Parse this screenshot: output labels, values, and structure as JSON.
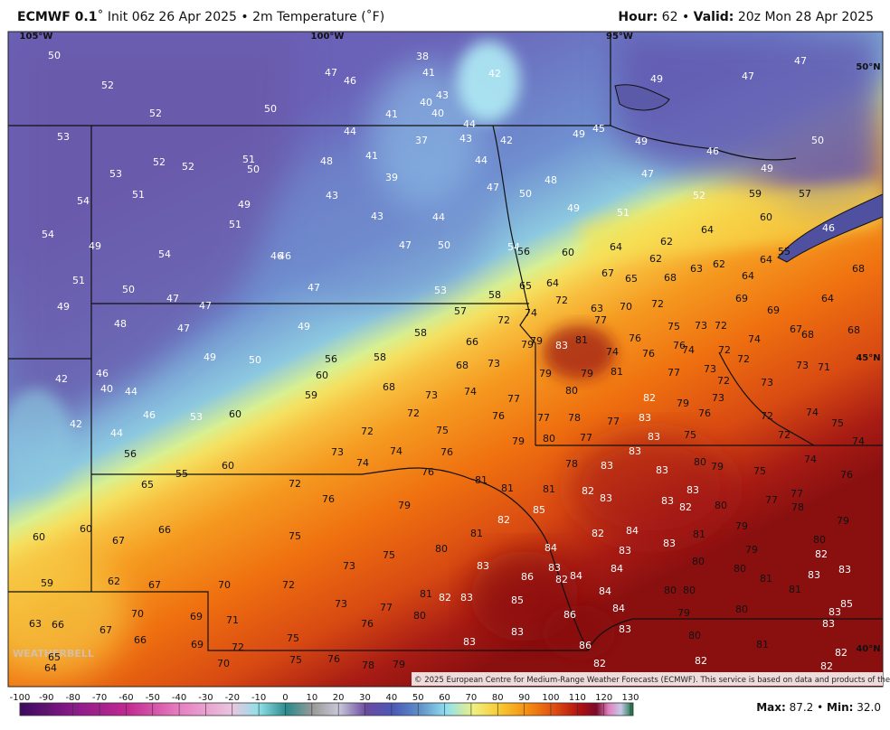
{
  "header": {
    "model": "ECMWF 0.1",
    "description": "˚ Init 06z 26 Apr 2025 • 2m Temperature (˚F)",
    "hour_label": "Hour:",
    "hour": 62,
    "separator": "•",
    "valid_label": "Valid:",
    "valid": "20z Mon 28 Apr 2025"
  },
  "map": {
    "longitudes": [
      "105°W",
      "100°W",
      "95°W"
    ],
    "latitudes": [
      "50°N",
      "45°N",
      "40°N"
    ],
    "station_values": [
      50,
      52,
      52,
      50,
      47,
      46,
      38,
      41,
      42,
      40,
      43,
      41,
      40,
      49,
      47,
      47,
      44,
      44,
      37,
      43,
      42,
      49,
      45,
      49,
      46,
      50,
      53,
      52,
      52,
      51,
      50,
      48,
      41,
      53,
      51,
      39,
      44,
      49,
      47,
      48,
      47,
      50,
      54,
      43,
      49,
      49,
      51,
      52,
      59,
      57,
      60,
      43,
      44,
      51,
      54,
      49,
      54,
      47,
      50,
      46,
      46,
      54,
      56,
      60,
      64,
      62,
      64,
      46,
      55,
      62,
      64,
      68,
      51,
      50,
      47,
      47,
      47,
      53,
      58,
      65,
      64,
      67,
      65,
      68,
      63,
      62,
      64,
      49,
      72,
      63,
      70,
      72,
      69,
      64,
      69,
      57,
      72,
      74,
      77,
      48,
      47,
      49,
      58,
      75,
      73,
      72,
      67,
      68,
      68,
      66,
      79,
      79,
      83,
      81,
      74,
      76,
      76,
      76,
      74,
      72,
      74,
      49,
      50,
      56,
      58,
      68,
      73,
      72,
      73,
      71,
      46,
      60,
      79,
      79,
      81,
      77,
      73,
      72,
      73,
      42,
      40,
      44,
      59,
      68,
      73,
      74,
      77,
      80,
      82,
      79,
      73,
      46,
      53,
      60,
      72,
      76,
      77,
      78,
      77,
      83,
      76,
      72,
      74,
      75,
      42,
      44,
      75,
      72,
      79,
      80,
      77,
      83,
      75,
      72,
      74,
      56,
      73,
      74,
      76,
      83,
      74,
      60,
      55,
      78,
      83,
      83,
      80,
      79,
      75,
      74,
      76,
      76,
      81,
      81,
      81,
      82,
      83,
      83,
      83,
      82,
      80,
      77,
      77,
      78,
      72,
      65,
      76,
      79,
      85,
      82,
      79,
      79,
      60,
      66,
      60,
      67,
      75,
      81,
      82,
      84,
      81,
      84,
      83,
      83,
      79,
      80,
      82,
      75,
      80,
      73,
      83,
      80,
      80,
      81,
      83,
      83,
      86,
      83,
      84,
      82,
      84,
      62,
      67,
      59,
      70,
      72,
      84,
      80,
      80,
      81,
      81,
      82,
      83,
      85,
      84,
      77,
      73,
      80,
      79,
      85,
      83,
      63,
      66,
      67,
      70,
      69,
      71,
      76,
      80,
      86,
      83,
      83,
      66,
      69,
      72,
      75,
      83,
      83,
      86,
      80,
      82,
      81,
      82,
      82,
      70,
      75,
      76,
      78,
      79,
      82,
      64,
      65
    ],
    "watermark": "WEATHERBELL",
    "copyright": "© 2025 European Centre for Medium-Range Weather Forecasts (ECMWF). This service is based on data and products of the ECMWF."
  },
  "colorbar": {
    "ticks": [
      -100,
      -90,
      -80,
      -70,
      -60,
      -50,
      -40,
      -30,
      -20,
      -10,
      0,
      10,
      20,
      30,
      40,
      50,
      60,
      70,
      80,
      90,
      100,
      110,
      120,
      130
    ]
  },
  "footer": {
    "max_label": "Max:",
    "max": "87.2",
    "separator": "•",
    "min_label": "Min:",
    "min": "32.0"
  }
}
